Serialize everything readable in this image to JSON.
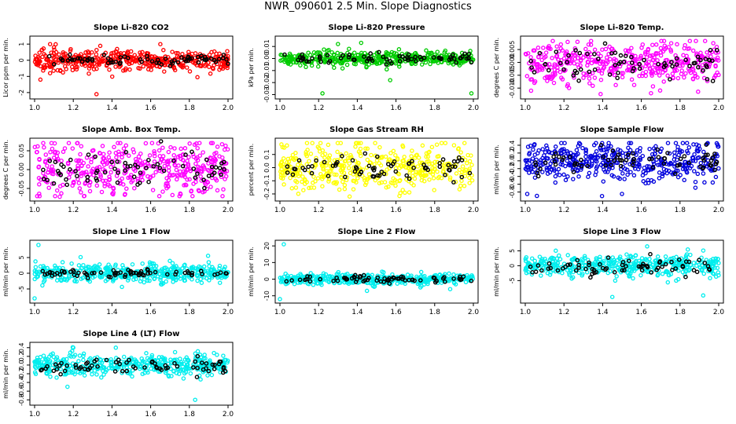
{
  "page_title": "NWR_090601  2.5 Min. Slope Diagnostics",
  "chart_data": [
    {
      "type": "scatter",
      "title": "Slope Li-820 CO2",
      "ylabel": "Licor ppm per min.",
      "color": "#ff0000",
      "xlim": [
        1.0,
        2.0
      ],
      "ylim": [
        -2.2,
        1.3
      ],
      "xticks": [
        1.0,
        1.2,
        1.4,
        1.6,
        1.8,
        2.0
      ],
      "xtick_labels": [
        "1.0",
        "1.2",
        "1.4",
        "1.6",
        "1.8",
        "2.0"
      ],
      "yticks": [
        -2,
        -1,
        0,
        1
      ],
      "ytick_labels": [
        "-2",
        "-1",
        "0",
        "1"
      ],
      "spread": 0.3,
      "black_spread": 0.15,
      "outliers": [
        [
          1.32,
          -2.1
        ],
        [
          1.03,
          -1.2
        ],
        [
          1.08,
          -0.8
        ],
        [
          1.67,
          -0.7
        ],
        [
          1.08,
          1.0
        ],
        [
          1.65,
          1.0
        ],
        [
          1.1,
          0.8
        ]
      ]
    },
    {
      "type": "scatter",
      "title": "Slope Li-820 Pressure",
      "ylabel": "kPa per min.",
      "color": "#00cc00",
      "xlim": [
        1.0,
        2.0
      ],
      "ylim": [
        -0.031,
        0.016
      ],
      "xticks": [
        1.0,
        1.2,
        1.4,
        1.6,
        1.8,
        2.0
      ],
      "xtick_labels": [
        "1.0",
        "1.2",
        "1.4",
        "1.6",
        "1.8",
        "2.0"
      ],
      "yticks": [
        -0.03,
        -0.02,
        -0.01,
        0.0,
        0.01
      ],
      "ytick_labels": [
        "-0.03",
        "-0.02",
        "-0.01",
        "0.00",
        "0.01"
      ],
      "spread": 0.003,
      "black_spread": 0.002,
      "outliers": [
        [
          1.22,
          -0.029
        ],
        [
          1.99,
          -0.029
        ],
        [
          1.57,
          -0.018
        ],
        [
          1.42,
          0.013
        ],
        [
          1.3,
          0.012
        ]
      ]
    },
    {
      "type": "scatter",
      "title": "Slope Li-820 Temp.",
      "ylabel": "degrees C per min.",
      "color": "#ff00ff",
      "xlim": [
        1.0,
        2.0
      ],
      "ylim": [
        -0.013,
        0.009
      ],
      "xticks": [
        1.0,
        1.2,
        1.4,
        1.6,
        1.8,
        2.0
      ],
      "xtick_labels": [
        "1.0",
        "1.2",
        "1.4",
        "1.6",
        "1.8",
        "2.0"
      ],
      "yticks": [
        -0.01,
        -0.005,
        0.0,
        0.005
      ],
      "ytick_labels": [
        "-0.010",
        "-0.005",
        "0.000",
        "0.005"
      ],
      "spread": 0.004,
      "black_spread": 0.003,
      "outliers": [
        [
          1.65,
          -0.012
        ],
        [
          1.03,
          -0.011
        ],
        [
          1.27,
          0.008
        ],
        [
          1.99,
          0.006
        ]
      ]
    },
    {
      "type": "scatter",
      "title": "Slope Amb. Box Temp.",
      "ylabel": "degrees C per min.",
      "color": "#ff00ff",
      "xlim": [
        1.0,
        2.0
      ],
      "ylim": [
        -0.075,
        0.075
      ],
      "xticks": [
        1.0,
        1.2,
        1.4,
        1.6,
        1.8,
        2.0
      ],
      "xtick_labels": [
        "1.0",
        "1.2",
        "1.4",
        "1.6",
        "1.8",
        "2.0"
      ],
      "yticks": [
        -0.05,
        0.0,
        0.05
      ],
      "ytick_labels": [
        "-0.05",
        "0.00",
        "0.05"
      ],
      "spread": 0.035,
      "black_spread": 0.025,
      "outliers": [
        [
          1.13,
          -0.072
        ],
        [
          1.22,
          0.07
        ],
        [
          1.87,
          -0.06
        ]
      ]
    },
    {
      "type": "scatter",
      "title": "Slope Gas Stream RH",
      "ylabel": "percent per min.",
      "color": "#ffff00",
      "xlim": [
        1.0,
        2.0
      ],
      "ylim": [
        -0.23,
        0.2
      ],
      "xticks": [
        1.0,
        1.2,
        1.4,
        1.6,
        1.8,
        2.0
      ],
      "xtick_labels": [
        "1.0",
        "1.2",
        "1.4",
        "1.6",
        "1.8",
        "2.0"
      ],
      "yticks": [
        -0.2,
        -0.1,
        0.0,
        0.1
      ],
      "ytick_labels": [
        "-0.2",
        "-0.1",
        "0.0",
        "0.1"
      ],
      "spread": 0.09,
      "black_spread": 0.05,
      "outliers": [
        [
          1.36,
          -0.22
        ],
        [
          1.9,
          0.17
        ]
      ]
    },
    {
      "type": "scatter",
      "title": "Slope Sample Flow",
      "ylabel": "ml/min per min.",
      "color": "#0000dd",
      "xlim": [
        1.0,
        2.0
      ],
      "ylim": [
        -0.95,
        0.5
      ],
      "xticks": [
        1.0,
        1.2,
        1.4,
        1.6,
        1.8,
        2.0
      ],
      "xtick_labels": [
        "1.0",
        "1.2",
        "1.4",
        "1.6",
        "1.8",
        "2.0"
      ],
      "yticks": [
        -0.8,
        -0.6,
        -0.4,
        -0.2,
        0.0,
        0.2,
        0.4
      ],
      "ytick_labels": [
        "-0.8",
        "-0.6",
        "-0.4",
        "-0.2",
        "0.0",
        "0.2",
        "0.4"
      ],
      "spread": 0.25,
      "black_spread": 0.15,
      "outliers": [
        [
          1.06,
          -0.9
        ],
        [
          1.01,
          -0.85
        ],
        [
          1.5,
          -0.85
        ],
        [
          1.99,
          0.45
        ]
      ]
    },
    {
      "type": "scatter",
      "title": "Slope Line 1 Flow",
      "ylabel": "ml/min per min.",
      "color": "#00eeee",
      "xlim": [
        1.0,
        2.0
      ],
      "ylim": [
        -8.5,
        9.5
      ],
      "xticks": [
        1.0,
        1.2,
        1.4,
        1.6,
        1.8,
        2.0
      ],
      "xtick_labels": [
        "1.0",
        "1.2",
        "1.4",
        "1.6",
        "1.8",
        "2.0"
      ],
      "yticks": [
        -5,
        0,
        5
      ],
      "ytick_labels": [
        "-5",
        "0",
        "5"
      ],
      "spread": 1.4,
      "black_spread": 0.5,
      "outliers": [
        [
          1.02,
          9.0
        ],
        [
          1.0,
          -8.0
        ]
      ]
    },
    {
      "type": "scatter",
      "title": "Slope Line 2 Flow",
      "ylabel": "ml/min per min.",
      "color": "#00eeee",
      "xlim": [
        1.0,
        2.0
      ],
      "ylim": [
        -12.5,
        21.5
      ],
      "xticks": [
        1.0,
        1.2,
        1.4,
        1.6,
        1.8,
        2.0
      ],
      "xtick_labels": [
        "1.0",
        "1.2",
        "1.4",
        "1.6",
        "1.8",
        "2.0"
      ],
      "yticks": [
        -10,
        0,
        10,
        20
      ],
      "ytick_labels": [
        "-10",
        "0",
        "10",
        "20"
      ],
      "spread": 1.5,
      "black_spread": 1.0,
      "outliers": [
        [
          1.02,
          21.0
        ],
        [
          1.0,
          -12.0
        ],
        [
          1.45,
          -7.0
        ],
        [
          1.88,
          -6.0
        ]
      ]
    },
    {
      "type": "scatter",
      "title": "Slope Line 3 Flow",
      "ylabel": "ml/min per min.",
      "color": "#00eeee",
      "xlim": [
        1.0,
        2.0
      ],
      "ylim": [
        -11.5,
        7.5
      ],
      "xticks": [
        1.0,
        1.2,
        1.4,
        1.6,
        1.8,
        2.0
      ],
      "xtick_labels": [
        "1.0",
        "1.2",
        "1.4",
        "1.6",
        "1.8",
        "2.0"
      ],
      "yticks": [
        -5,
        0,
        5
      ],
      "ytick_labels": [
        "-5",
        "0",
        "5"
      ],
      "spread": 1.8,
      "black_spread": 1.5,
      "outliers": [
        [
          1.45,
          -10.5
        ],
        [
          1.92,
          -10.0
        ],
        [
          1.63,
          6.5
        ],
        [
          1.78,
          -5.0
        ]
      ]
    },
    {
      "type": "scatter",
      "title": "Slope Line 4 (LT) Flow",
      "ylabel": "ml/min per min.",
      "color": "#00eeee",
      "xlim": [
        1.0,
        2.0
      ],
      "ylim": [
        -0.85,
        0.45
      ],
      "xticks": [
        1.0,
        1.2,
        1.4,
        1.6,
        1.8,
        2.0
      ],
      "xtick_labels": [
        "1.0",
        "1.2",
        "1.4",
        "1.6",
        "1.8",
        "2.0"
      ],
      "yticks": [
        -0.8,
        -0.6,
        -0.4,
        -0.2,
        0.0,
        0.2,
        0.4
      ],
      "ytick_labels": [
        "-0.8",
        "-0.6",
        "-0.4",
        "-0.2",
        "0.0",
        "0.2",
        "0.4"
      ],
      "spread": 0.12,
      "black_spread": 0.1,
      "outliers": [
        [
          1.83,
          -0.8
        ],
        [
          1.17,
          -0.5
        ],
        [
          1.42,
          0.4
        ],
        [
          1.2,
          0.4
        ]
      ]
    }
  ]
}
